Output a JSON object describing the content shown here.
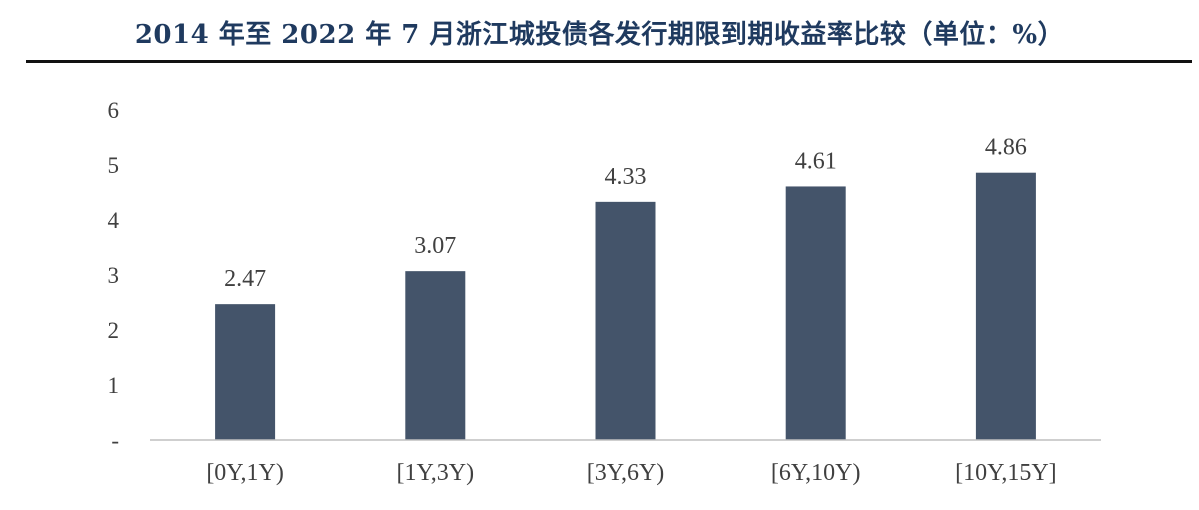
{
  "title": "2014 年至 2022 年 7 月浙江城投债各发行期限到期收益率比较（单位：%）",
  "chart_data": {
    "type": "bar",
    "title": "2014 年至 2022 年 7 月浙江城投债各发行期限到期收益率比较（单位：%）",
    "xlabel": "",
    "ylabel": "",
    "categories": [
      "[0Y,1Y)",
      "[1Y,3Y)",
      "[3Y,6Y)",
      "[6Y,10Y)",
      "[10Y,15Y]"
    ],
    "values": [
      2.47,
      3.07,
      4.33,
      4.61,
      4.86
    ],
    "data_labels": [
      "2.47",
      "3.07",
      "4.33",
      "4.61",
      "4.86"
    ],
    "ylim": [
      0,
      6
    ],
    "y_ticks": [
      0,
      1,
      2,
      3,
      4,
      5,
      6
    ],
    "y_tick_labels": [
      "-",
      "1",
      "2",
      "3",
      "4",
      "5",
      "6"
    ],
    "grid": false,
    "legend": "none",
    "colors": {
      "bar": "#44546a",
      "axis": "#bfbfbf",
      "text": "#404040",
      "title": "#1f3a5f"
    }
  }
}
